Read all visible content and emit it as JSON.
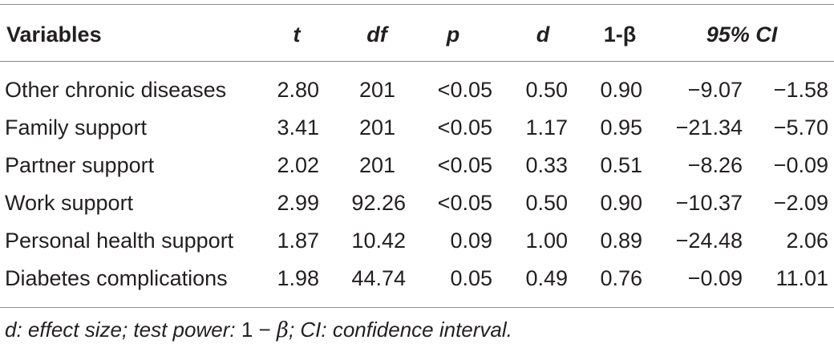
{
  "header": {
    "variables": "Variables",
    "t": "t",
    "df": "df",
    "p": "p",
    "d": "d",
    "power": "1-β",
    "ci": "95% CI"
  },
  "rows": [
    {
      "variable": "Other chronic diseases",
      "t": "2.80",
      "df": "201",
      "p": "<0.05",
      "d": "0.50",
      "power": "0.90",
      "ci_low": "−9.07",
      "ci_high": "−1.58"
    },
    {
      "variable": "Family support",
      "t": "3.41",
      "df": "201",
      "p": "<0.05",
      "d": "1.17",
      "power": "0.95",
      "ci_low": "−21.34",
      "ci_high": "−5.70"
    },
    {
      "variable": "Partner support",
      "t": "2.02",
      "df": "201",
      "p": "<0.05",
      "d": "0.33",
      "power": "0.51",
      "ci_low": "−8.26",
      "ci_high": "−0.09"
    },
    {
      "variable": "Work support",
      "t": "2.99",
      "df": "92.26",
      "p": "<0.05",
      "d": "0.50",
      "power": "0.90",
      "ci_low": "−10.37",
      "ci_high": "−2.09"
    },
    {
      "variable": "Personal health support",
      "t": "1.87",
      "df": "10.42",
      "p": "0.09",
      "d": "1.00",
      "power": "0.89",
      "ci_low": "−24.48",
      "ci_high": "2.06"
    },
    {
      "variable": "Diabetes complications",
      "t": "1.98",
      "df": "44.74",
      "p": "0.05",
      "d": "0.49",
      "power": "0.76",
      "ci_low": "−0.09",
      "ci_high": "11.01"
    }
  ],
  "footnote": {
    "part1": "d: effect size; test power: ",
    "one": "1",
    "minus": " − ",
    "beta": "β",
    "part2": "; CI: confidence interval."
  }
}
